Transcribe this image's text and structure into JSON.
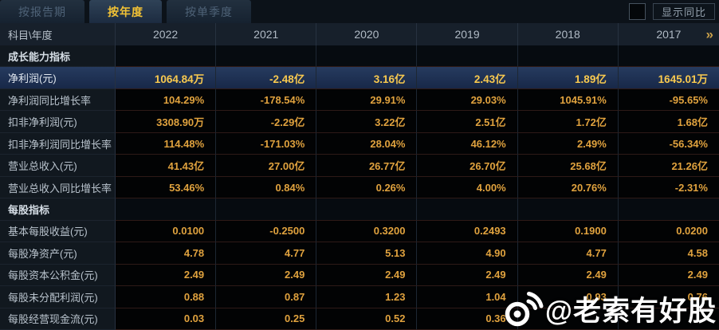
{
  "tabs": [
    {
      "label": "按报告期",
      "active": false
    },
    {
      "label": "按年度",
      "active": true
    },
    {
      "label": "按单季度",
      "active": false
    }
  ],
  "controls": {
    "show_yoy_label": "显示同比",
    "checkbox_checked": false
  },
  "table": {
    "corner_header": "科目\\年度",
    "year_headers": [
      "2022",
      "2021",
      "2020",
      "2019",
      "2018",
      "2017"
    ],
    "more_columns_icon": "»",
    "rows": [
      {
        "type": "section",
        "label": "成长能力指标",
        "values": [
          "",
          "",
          "",
          "",
          "",
          ""
        ]
      },
      {
        "type": "highlight",
        "label": "净利润(元)",
        "values": [
          "1064.84万",
          "-2.48亿",
          "3.16亿",
          "2.43亿",
          "1.89亿",
          "1645.01万"
        ]
      },
      {
        "type": "data",
        "label": "净利润同比增长率",
        "values": [
          "104.29%",
          "-178.54%",
          "29.91%",
          "29.03%",
          "1045.91%",
          "-95.65%"
        ]
      },
      {
        "type": "data",
        "label": "扣非净利润(元)",
        "values": [
          "3308.90万",
          "-2.29亿",
          "3.22亿",
          "2.51亿",
          "1.72亿",
          "1.68亿"
        ]
      },
      {
        "type": "data",
        "label": "扣非净利润同比增长率",
        "values": [
          "114.48%",
          "-171.03%",
          "28.04%",
          "46.12%",
          "2.49%",
          "-56.34%"
        ]
      },
      {
        "type": "data",
        "label": "营业总收入(元)",
        "values": [
          "41.43亿",
          "27.00亿",
          "26.77亿",
          "26.70亿",
          "25.68亿",
          "21.26亿"
        ]
      },
      {
        "type": "data",
        "label": "营业总收入同比增长率",
        "values": [
          "53.46%",
          "0.84%",
          "0.26%",
          "4.00%",
          "20.76%",
          "-2.31%"
        ]
      },
      {
        "type": "section",
        "label": "每股指标",
        "values": [
          "",
          "",
          "",
          "",
          "",
          ""
        ]
      },
      {
        "type": "data",
        "label": "基本每股收益(元)",
        "values": [
          "0.0100",
          "-0.2500",
          "0.3200",
          "0.2493",
          "0.1900",
          "0.0200"
        ]
      },
      {
        "type": "data",
        "label": "每股净资产(元)",
        "values": [
          "4.78",
          "4.77",
          "5.13",
          "4.90",
          "4.77",
          "4.58"
        ]
      },
      {
        "type": "data",
        "label": "每股资本公积金(元)",
        "values": [
          "2.49",
          "2.49",
          "2.49",
          "2.49",
          "2.49",
          "2.49"
        ]
      },
      {
        "type": "data",
        "label": "每股未分配利润(元)",
        "values": [
          "0.88",
          "0.87",
          "1.23",
          "1.04",
          "0.93",
          "0.76"
        ]
      },
      {
        "type": "data",
        "label": "每股经营现金流(元)",
        "values": [
          "0.03",
          "0.25",
          "0.52",
          "0.36",
          "",
          ""
        ]
      }
    ]
  },
  "watermark": {
    "text": "@老索有好股",
    "icon": "weibo-icon"
  },
  "colors": {
    "accent_gold": "#f2c235",
    "value_gold": "#e0a23e",
    "highlight_value_gold": "#f8c94f",
    "highlight_row_bg": "#1d2f50",
    "table_bg": "#020304",
    "label_col_bg": "#11181f"
  }
}
